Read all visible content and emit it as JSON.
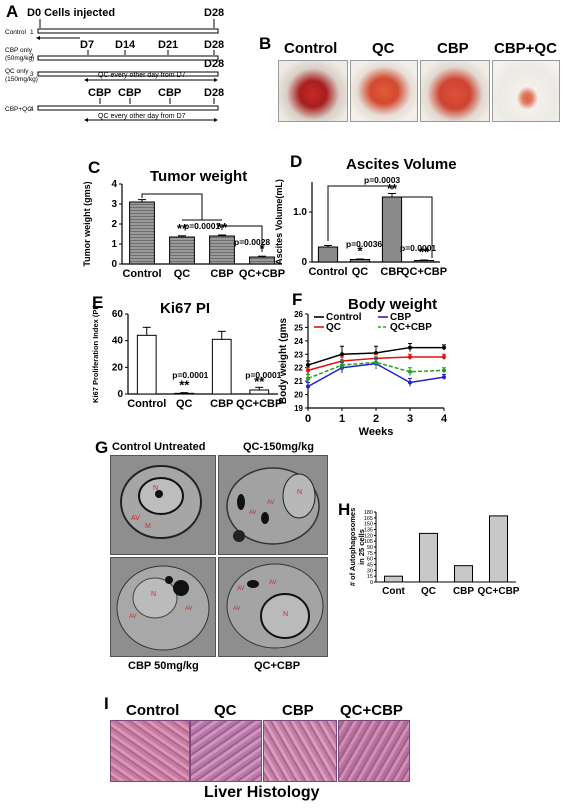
{
  "panel_a": {
    "label": "A",
    "header_left": "D0 Cells injected",
    "header_right": "D28",
    "rows": [
      {
        "name": "Control",
        "num": "1",
        "sub": "",
        "marks": []
      },
      {
        "name": "CBP only",
        "num": "2",
        "sub": "(50mg/kg)",
        "marks": [
          "D7",
          "D14",
          "D21",
          "D28"
        ]
      },
      {
        "name": "QC only",
        "num": "3",
        "sub": "(150mg/kg)",
        "marks": [],
        "end_mark": "D28",
        "note": "QC every other day from D7"
      },
      {
        "name": "CBP+QC",
        "num": "4",
        "sub": "",
        "marks": [
          "CBP",
          "CBP",
          "CBP",
          "D28"
        ],
        "note": "QC every other day from D7"
      }
    ]
  },
  "panel_b": {
    "label": "B",
    "groups": [
      "Control",
      "QC",
      "CBP",
      "CBP+QC"
    ]
  },
  "panel_g": {
    "label": "G",
    "captions": [
      "Control Untreated",
      "QC-150mg/kg",
      "CBP 50mg/kg",
      "QC+CBP"
    ]
  },
  "panel_i": {
    "label": "I",
    "groups": [
      "Control",
      "QC",
      "CBP",
      "QC+CBP"
    ],
    "footer": "Liver Histology"
  },
  "chart_data": [
    {
      "panel": "C",
      "type": "bar",
      "title": "Tumor weight",
      "categories": [
        "Control",
        "QC",
        "CBP",
        "QC+CBP"
      ],
      "values": [
        3.1,
        1.35,
        1.4,
        0.35
      ],
      "errors": [
        0.12,
        0.06,
        0.05,
        0.04
      ],
      "sig": [
        "",
        "**",
        "**",
        "*"
      ],
      "ylabel": "Tumor weight (gms)",
      "ylim": [
        0,
        4
      ],
      "yticks": [
        "0",
        "1",
        "2",
        "3",
        "4"
      ],
      "annotations": [
        "p=0.0001",
        "p=0.0028"
      ]
    },
    {
      "panel": "D",
      "type": "bar",
      "title": "Ascites Volume",
      "categories": [
        "Control",
        "QC",
        "CBP",
        "QC+CBP"
      ],
      "values": [
        0.3,
        0.05,
        1.3,
        0.03
      ],
      "errors": [
        0.03,
        0.01,
        0.07,
        0.01
      ],
      "sig": [
        "",
        "*",
        "**",
        "**"
      ],
      "ylabel": "Ascites Volume(mL)",
      "ylim": [
        0,
        1.6
      ],
      "yticks": [
        "0",
        "1.0"
      ],
      "annotations": [
        "p=0.0003",
        "p=0.0036",
        "p=0.0001"
      ]
    },
    {
      "panel": "E",
      "type": "bar",
      "title": "Ki67 PI",
      "categories": [
        "Control",
        "QC",
        "CBP",
        "QC+CBP"
      ],
      "values": [
        44,
        0.5,
        41,
        3
      ],
      "errors": [
        6,
        0.5,
        6,
        2
      ],
      "sig": [
        "",
        "**",
        "",
        "**"
      ],
      "ylabel": "Ki67 Proliferation Index (PI)",
      "ylim": [
        0,
        60
      ],
      "yticks": [
        "0",
        "20",
        "40",
        "60"
      ],
      "annotations": [
        "p=0.0001",
        "p=0.0001"
      ]
    },
    {
      "panel": "F",
      "type": "line",
      "title": "Body weight",
      "x": [
        0,
        1,
        2,
        3,
        4
      ],
      "xticks": [
        "0",
        "1",
        "2",
        "3",
        "4"
      ],
      "xlabel": "Weeks",
      "ylabel": "Body weight (gms",
      "ylim": [
        19,
        26
      ],
      "yticks": [
        "19",
        "20",
        "21",
        "22",
        "23",
        "24",
        "25",
        "26"
      ],
      "series": [
        {
          "name": "Control",
          "color": "#000000",
          "dash": false,
          "marker": "circle",
          "values": [
            22.2,
            23.0,
            23.1,
            23.5,
            23.5
          ],
          "errors": [
            0.3,
            0.6,
            0.5,
            0.3,
            0.2
          ]
        },
        {
          "name": "QC",
          "color": "#e01010",
          "dash": false,
          "marker": "diamond",
          "values": [
            21.8,
            22.5,
            22.7,
            22.8,
            22.8
          ],
          "errors": [
            0.2,
            0.3,
            0.3,
            0.2,
            0.2
          ]
        },
        {
          "name": "CBP",
          "color": "#2222cc",
          "dash": false,
          "marker": "triangle",
          "values": [
            20.6,
            22.0,
            22.3,
            20.9,
            21.3
          ],
          "errors": [
            0.3,
            0.4,
            0.4,
            0.3,
            0.2
          ]
        },
        {
          "name": "QC+CBP",
          "color": "#22a022",
          "dash": true,
          "marker": "square",
          "values": [
            21.2,
            22.2,
            22.4,
            21.7,
            21.8
          ],
          "errors": [
            0.3,
            0.3,
            0.4,
            0.3,
            0.2
          ]
        }
      ]
    },
    {
      "panel": "H",
      "type": "bar",
      "categories": [
        "Cont",
        "QC",
        "CBP",
        "QC+CBP"
      ],
      "values": [
        15,
        125,
        42,
        170
      ],
      "ylabel": "# of Autophagosomes in 25 cells",
      "ylim": [
        0,
        180
      ],
      "yticks": [
        "0",
        "15",
        "30",
        "45",
        "60",
        "75",
        "90",
        "105",
        "120",
        "135",
        "150",
        "165",
        "180"
      ]
    }
  ]
}
